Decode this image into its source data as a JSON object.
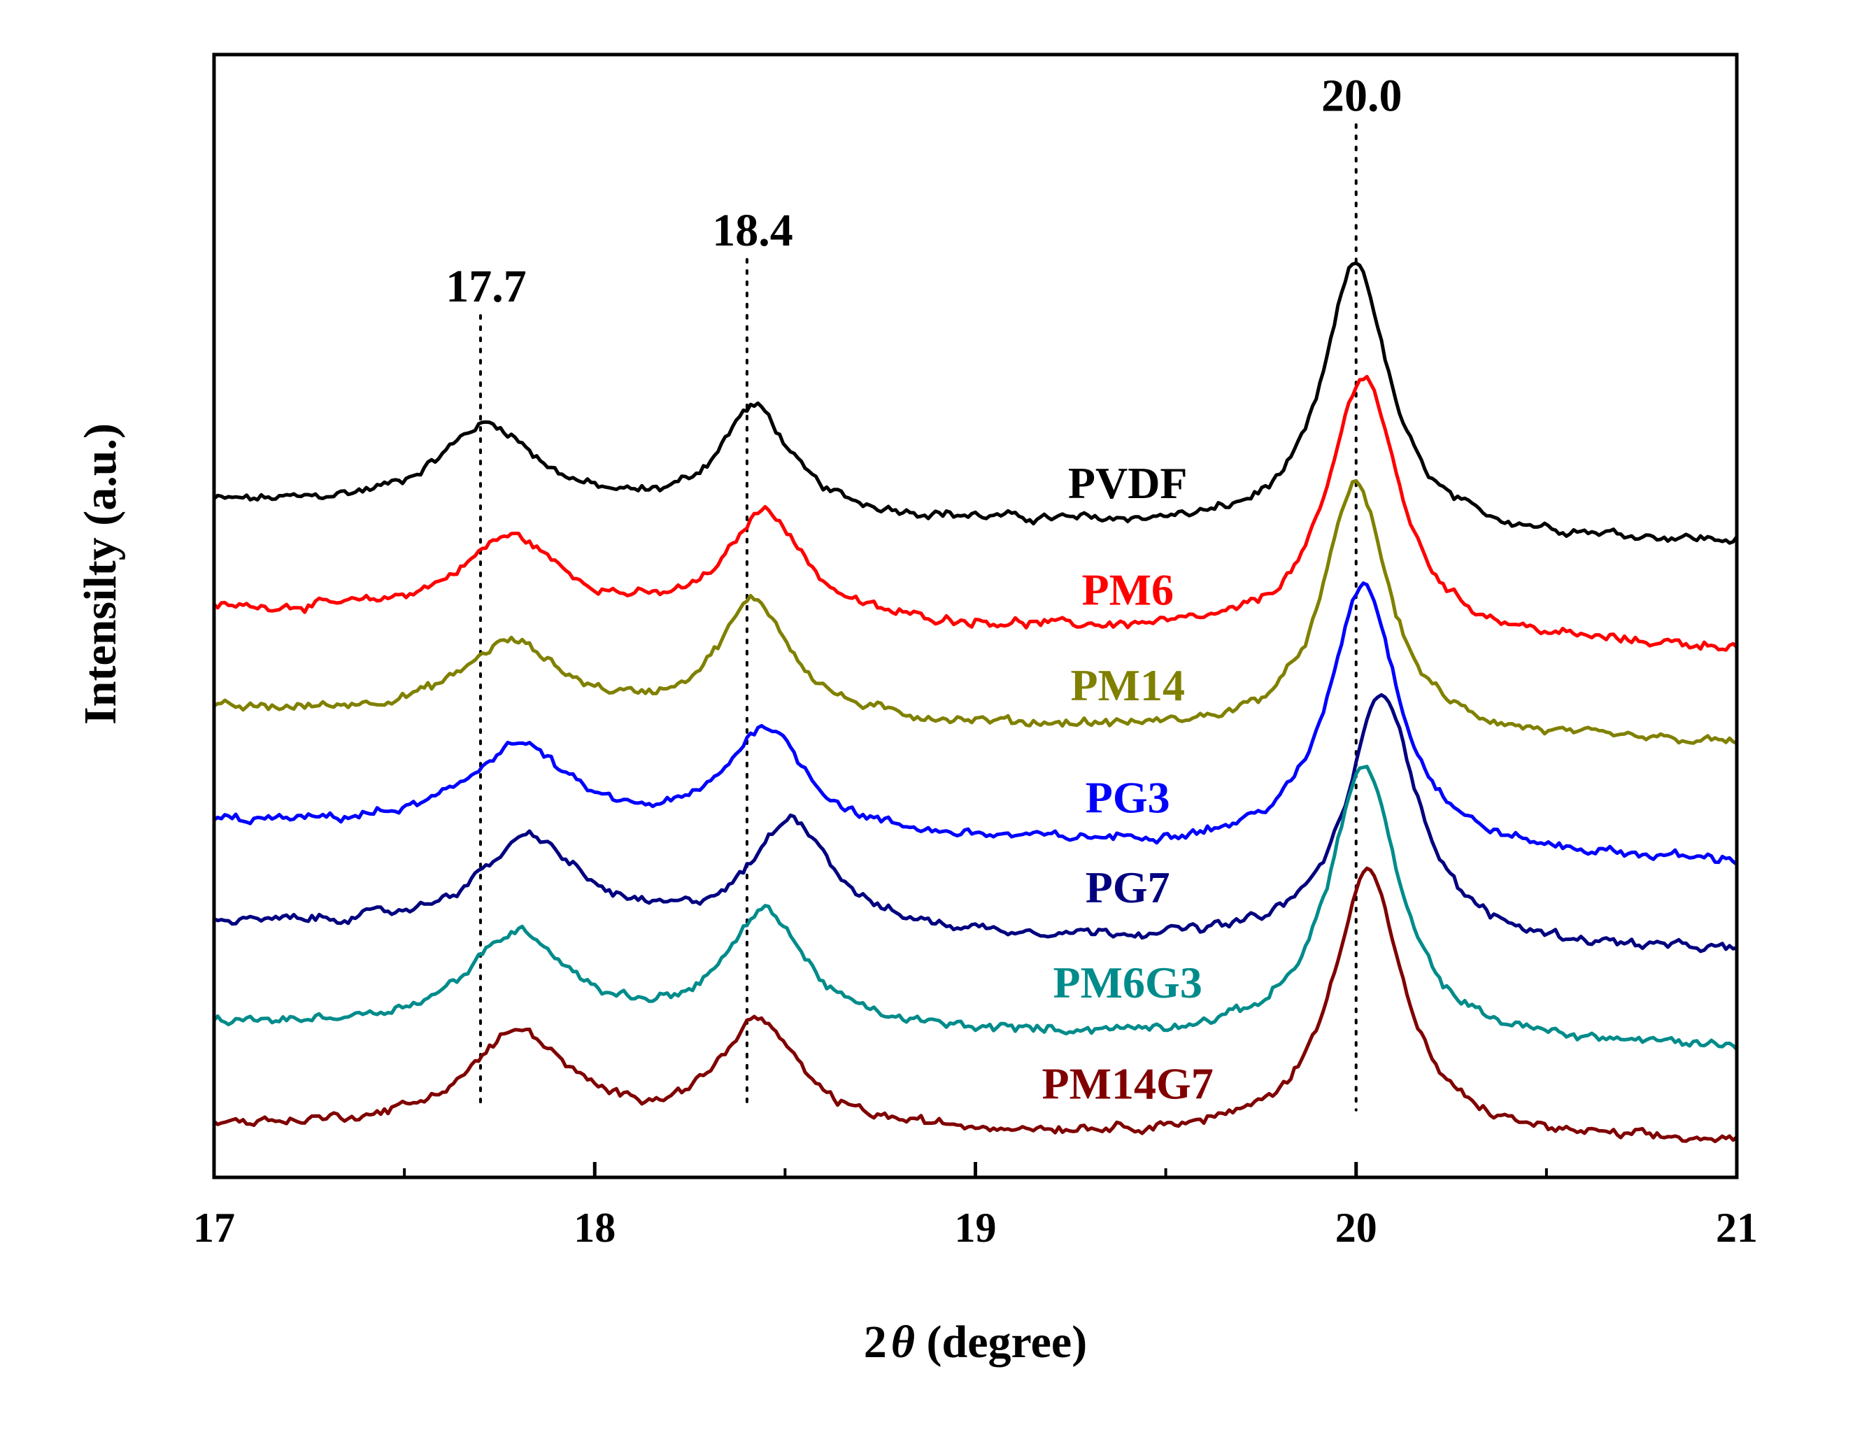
{
  "chart_data": {
    "type": "line",
    "title": "",
    "xlabel": "2θ (degree)",
    "xlabel_parts": {
      "prefix": "2",
      "symbol": "θ",
      "suffix": " (degree)"
    },
    "ylabel": "Intensilty (a.u.)",
    "xlim": [
      17,
      21
    ],
    "x_ticks": [
      "17",
      "18",
      "19",
      "20",
      "21"
    ],
    "x_tick_values": [
      17,
      18,
      19,
      20,
      21
    ],
    "x_minor_ticks": [
      17.5,
      18.5,
      19.5,
      20.5
    ],
    "y_ticks_visible": false,
    "ylim": [
      0,
      100
    ],
    "grid": false,
    "legend": "none",
    "peak_markers": [
      {
        "x": 17.7,
        "label": "17.7",
        "y_label": 78
      },
      {
        "x": 18.4,
        "label": "18.4",
        "y_label": 83
      },
      {
        "x": 20.0,
        "label": "20.0",
        "y_label": 95
      }
    ],
    "series": [
      {
        "name": "PVDF",
        "color": "#000000",
        "baseline_left": 60.0,
        "baseline_right": 56.5,
        "peaks": [
          {
            "x": 17.72,
            "height": 7.5,
            "width": 0.2
          },
          {
            "x": 18.42,
            "height": 9.5,
            "width": 0.14
          },
          {
            "x": 20.0,
            "height": 24.0,
            "width": 0.13
          }
        ],
        "label_x": 19.4,
        "label_y": 60.5
      },
      {
        "name": "PM6",
        "color": "#ff0000",
        "baseline_left": 50.5,
        "baseline_right": 47.0,
        "peaks": [
          {
            "x": 17.78,
            "height": 7.0,
            "width": 0.2
          },
          {
            "x": 18.45,
            "height": 9.8,
            "width": 0.15
          },
          {
            "x": 20.02,
            "height": 23.5,
            "width": 0.14
          }
        ],
        "label_x": 19.4,
        "label_y": 51.0
      },
      {
        "name": "PM14",
        "color": "#808000",
        "baseline_left": 41.5,
        "baseline_right": 38.5,
        "peaks": [
          {
            "x": 17.78,
            "height": 6.5,
            "width": 0.2
          },
          {
            "x": 18.42,
            "height": 10.5,
            "width": 0.15
          },
          {
            "x": 20.0,
            "height": 22.5,
            "width": 0.13
          }
        ],
        "label_x": 19.4,
        "label_y": 42.5
      },
      {
        "name": "PG3",
        "color": "#0000ff",
        "baseline_left": 31.5,
        "baseline_right": 28.0,
        "peaks": [
          {
            "x": 17.8,
            "height": 7.5,
            "width": 0.2
          },
          {
            "x": 18.45,
            "height": 9.5,
            "width": 0.16
          },
          {
            "x": 20.02,
            "height": 24.0,
            "width": 0.14
          }
        ],
        "label_x": 19.4,
        "label_y": 32.5
      },
      {
        "name": "PG7",
        "color": "#000080",
        "baseline_left": 22.5,
        "baseline_right": 20.0,
        "peaks": [
          {
            "x": 17.83,
            "height": 8.0,
            "width": 0.2
          },
          {
            "x": 18.52,
            "height": 10.0,
            "width": 0.16
          },
          {
            "x": 20.07,
            "height": 22.5,
            "width": 0.14
          }
        ],
        "label_x": 19.4,
        "label_y": 24.5
      },
      {
        "name": "PM6G3",
        "color": "#008b8b",
        "baseline_left": 13.5,
        "baseline_right": 11.5,
        "peaks": [
          {
            "x": 17.8,
            "height": 8.5,
            "width": 0.2
          },
          {
            "x": 18.45,
            "height": 10.5,
            "width": 0.16
          },
          {
            "x": 20.02,
            "height": 24.5,
            "width": 0.14
          }
        ],
        "label_x": 19.4,
        "label_y": 16.0
      },
      {
        "name": "PM14G7",
        "color": "#800000",
        "baseline_left": 4.5,
        "baseline_right": 3.0,
        "peaks": [
          {
            "x": 17.8,
            "height": 8.5,
            "width": 0.2
          },
          {
            "x": 18.43,
            "height": 9.5,
            "width": 0.16
          },
          {
            "x": 20.03,
            "height": 24.0,
            "width": 0.14
          }
        ],
        "label_x": 19.4,
        "label_y": 7.0
      }
    ]
  }
}
